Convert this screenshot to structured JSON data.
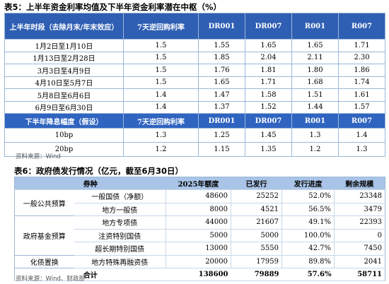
{
  "table5": {
    "title": "表5：上半年资金利率均值及下半年资金利率潜在中枢（%）",
    "header1": [
      "上半年时段（去除月末/年末效应）",
      "7天逆回购利率",
      "DR001",
      "DR007",
      "R001",
      "R007"
    ],
    "rows1": [
      [
        "1月2日至1月10日",
        "1.5",
        "1.55",
        "1.65",
        "1.65",
        "1.71"
      ],
      [
        "1月13日至2月28日",
        "1.5",
        "1.85",
        "2.04",
        "2.11",
        "2.30"
      ],
      [
        "3月3日至4月9日",
        "1.5",
        "1.76",
        "1.81",
        "1.80",
        "1.86"
      ],
      [
        "4月10日至5月7日",
        "1.5",
        "1.65",
        "1.71",
        "1.68",
        "1.74"
      ],
      [
        "5月8日至6月6日",
        "1.4",
        "1.47",
        "1.58",
        "1.51",
        "1.61"
      ],
      [
        "6月9日至6月30日",
        "1.4",
        "1.37",
        "1.52",
        "1.44",
        "1.57"
      ]
    ],
    "header2": [
      "下半年降息幅度（假设）",
      "7天逆回购利率",
      "DR001",
      "DR007",
      "R001",
      "R007"
    ],
    "rows2": [
      [
        "10bp",
        "1.3",
        "1.25",
        "1.45",
        "1.3",
        "1.4"
      ],
      [
        "20bp",
        "1.2",
        "1.15",
        "1.35",
        "1.2",
        "1.3"
      ]
    ],
    "source": "资料来源：Wind"
  },
  "table6": {
    "title": "表6：政府债发行情况（亿元，截至6月30日）",
    "header": [
      "券种",
      "2025年额度",
      "已发行",
      "发行进度",
      "剩余规模"
    ],
    "groups": [
      {
        "category": "一般公共预算",
        "rows": [
          [
            "一般国债（净额）",
            "48600",
            "25252",
            "52.0%",
            "23348"
          ],
          [
            "地方一般债",
            "8000",
            "4521",
            "56.5%",
            "3479"
          ]
        ]
      },
      {
        "category": "政府基金预算",
        "rows": [
          [
            "地方专项债",
            "44000",
            "21607",
            "49.1%",
            "22393"
          ],
          [
            "注资特别国债",
            "5000",
            "5000",
            "100.0%",
            "0"
          ],
          [
            "超长期特别国债",
            "13000",
            "5550",
            "42.7%",
            "7450"
          ]
        ]
      },
      {
        "category": "化债置换",
        "rows": [
          [
            "地方特殊再融资债",
            "20000",
            "17959",
            "89.8%",
            "2041"
          ]
        ]
      }
    ],
    "total": [
      "合计",
      "138600",
      "79889",
      "57.6%",
      "58711"
    ],
    "source": "资料来源：Wind、财政部"
  }
}
